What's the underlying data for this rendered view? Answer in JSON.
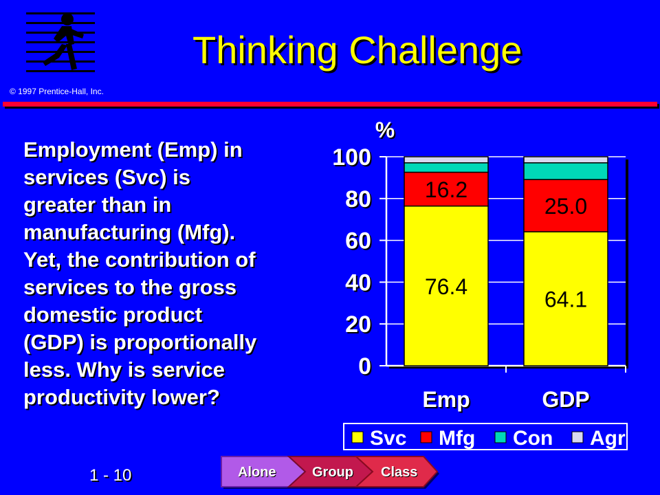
{
  "slide": {
    "title": "Thinking Challenge",
    "copyright": "© 1997 Prentice-Hall, Inc.",
    "number": "1 - 10",
    "body_lines": [
      "Employment (Emp) in",
      "services (Svc) is",
      "greater than in",
      "manufacturing (Mfg).",
      "Yet, the contribution of",
      "services to the gross",
      "domestic product",
      "(GDP) is proportionally",
      "less.  Why is service",
      "productivity lower?"
    ]
  },
  "nav": {
    "alone": "Alone",
    "group": "Group",
    "class": "Class"
  },
  "colors": {
    "background": "#0000ff",
    "title": "#ffff00",
    "rule": "#ff0033",
    "svc": "#ffff00",
    "mfg": "#ff0000",
    "con": "#00d8b8",
    "agr": "#d8d8f0"
  },
  "chart_data": {
    "type": "bar",
    "stacked": true,
    "ylabel": "%",
    "ylim": [
      0,
      100
    ],
    "yticks": [
      "0",
      "20",
      "40",
      "60",
      "80",
      "100"
    ],
    "categories": [
      "Emp",
      "GDP"
    ],
    "series": [
      {
        "name": "Svc",
        "values": [
          76.4,
          64.1
        ],
        "labels": [
          "76.4",
          "64.1"
        ],
        "color": "#ffff00"
      },
      {
        "name": "Mfg",
        "values": [
          16.2,
          25.0
        ],
        "labels": [
          "16.2",
          "25.0"
        ],
        "color": "#ff0000"
      },
      {
        "name": "Con",
        "values": [
          4.5,
          8.0
        ],
        "color": "#00d8b8"
      },
      {
        "name": "Agr",
        "values": [
          2.9,
          2.9
        ],
        "color": "#d8d8f0"
      }
    ],
    "grid": true,
    "legend": "bottom"
  }
}
